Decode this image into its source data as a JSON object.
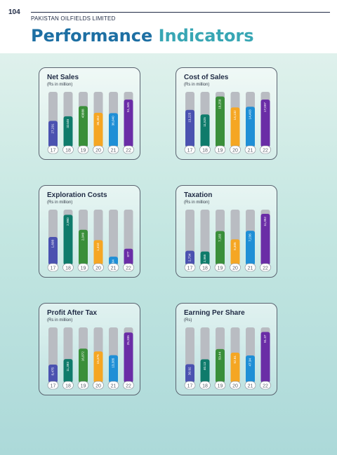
{
  "header": {
    "page_number": "104",
    "company": "PAKISTAN OILFIELDS LIMITED",
    "title_part1": "Performance",
    "title_part2": "Indicators"
  },
  "colors": {
    "series": [
      "#4b52b0",
      "#0f7b6b",
      "#3a8f3a",
      "#f5a623",
      "#1f8fd6",
      "#6a2da6"
    ],
    "track": "#b9bcc2",
    "title_blue": "#1d6fa3",
    "title_teal": "#38a6b4"
  },
  "chart_data": [
    {
      "type": "bar",
      "title": "Net Sales",
      "subtitle": "(Rs in million)",
      "categories": [
        "17",
        "18",
        "19",
        "20",
        "21",
        "22"
      ],
      "values": [
        27291,
        32448,
        43888,
        36452,
        36040,
        51345
      ],
      "value_labels": [
        "27,291",
        "32448",
        "43888",
        "36,452",
        "36,040",
        "51,345"
      ],
      "ylim": [
        0,
        60000
      ]
    },
    {
      "type": "bar",
      "title": "Cost of Sales",
      "subtitle": "(Rs in million)",
      "categories": [
        "17",
        "18",
        "19",
        "20",
        "21",
        "22"
      ],
      "values": [
        13225,
        11525,
        18258,
        14132,
        14403,
        17097
      ],
      "value_labels": [
        "13,225",
        "11,525",
        "18,258",
        "14,132",
        "14,403",
        "17,097"
      ],
      "ylim": [
        0,
        20000
      ]
    },
    {
      "type": "bar",
      "title": "Exploration Costs",
      "subtitle": "(Rs in million)",
      "categories": [
        "17",
        "18",
        "19",
        "20",
        "21",
        "22"
      ],
      "values": [
        1608,
        2980,
        2049,
        1410,
        384,
        877
      ],
      "value_labels": [
        "1,608",
        "2,980",
        "2,049",
        "1,410",
        "384",
        "877"
      ],
      "ylim": [
        0,
        3300
      ]
    },
    {
      "type": "bar",
      "title": "Taxation",
      "subtitle": "(Rs in million)",
      "categories": [
        "17",
        "18",
        "19",
        "20",
        "21",
        "22"
      ],
      "values": [
        2734,
        2565,
        7183,
        5305,
        7236,
        11052
      ],
      "value_labels": [
        "2,734",
        "2,565",
        "7,183",
        "5,305",
        "7,236",
        "11,052"
      ],
      "ylim": [
        0,
        12000
      ]
    },
    {
      "type": "bar",
      "title": "Profit After Tax",
      "subtitle": "(Rs in million)",
      "categories": [
        "17",
        "18",
        "19",
        "20",
        "21",
        "22"
      ],
      "values": [
        8475,
        11393,
        16872,
        15375,
        13385,
        25335
      ],
      "value_labels": [
        "8,475",
        "11,393",
        "16,872",
        "15,375",
        "13,385",
        "25,335"
      ],
      "ylim": [
        0,
        28000
      ]
    },
    {
      "type": "bar",
      "title": "Earning Per Share",
      "subtitle": "(Rs)",
      "categories": [
        "17",
        "18",
        "19",
        "20",
        "21",
        "22"
      ],
      "values": [
        30.92,
        40.13,
        59.44,
        52.61,
        47.34,
        91.37
      ],
      "value_labels": [
        "30.92",
        "40.13",
        "59.44",
        "52.61",
        "47.34",
        "91.37"
      ],
      "ylim": [
        0,
        100
      ]
    }
  ]
}
